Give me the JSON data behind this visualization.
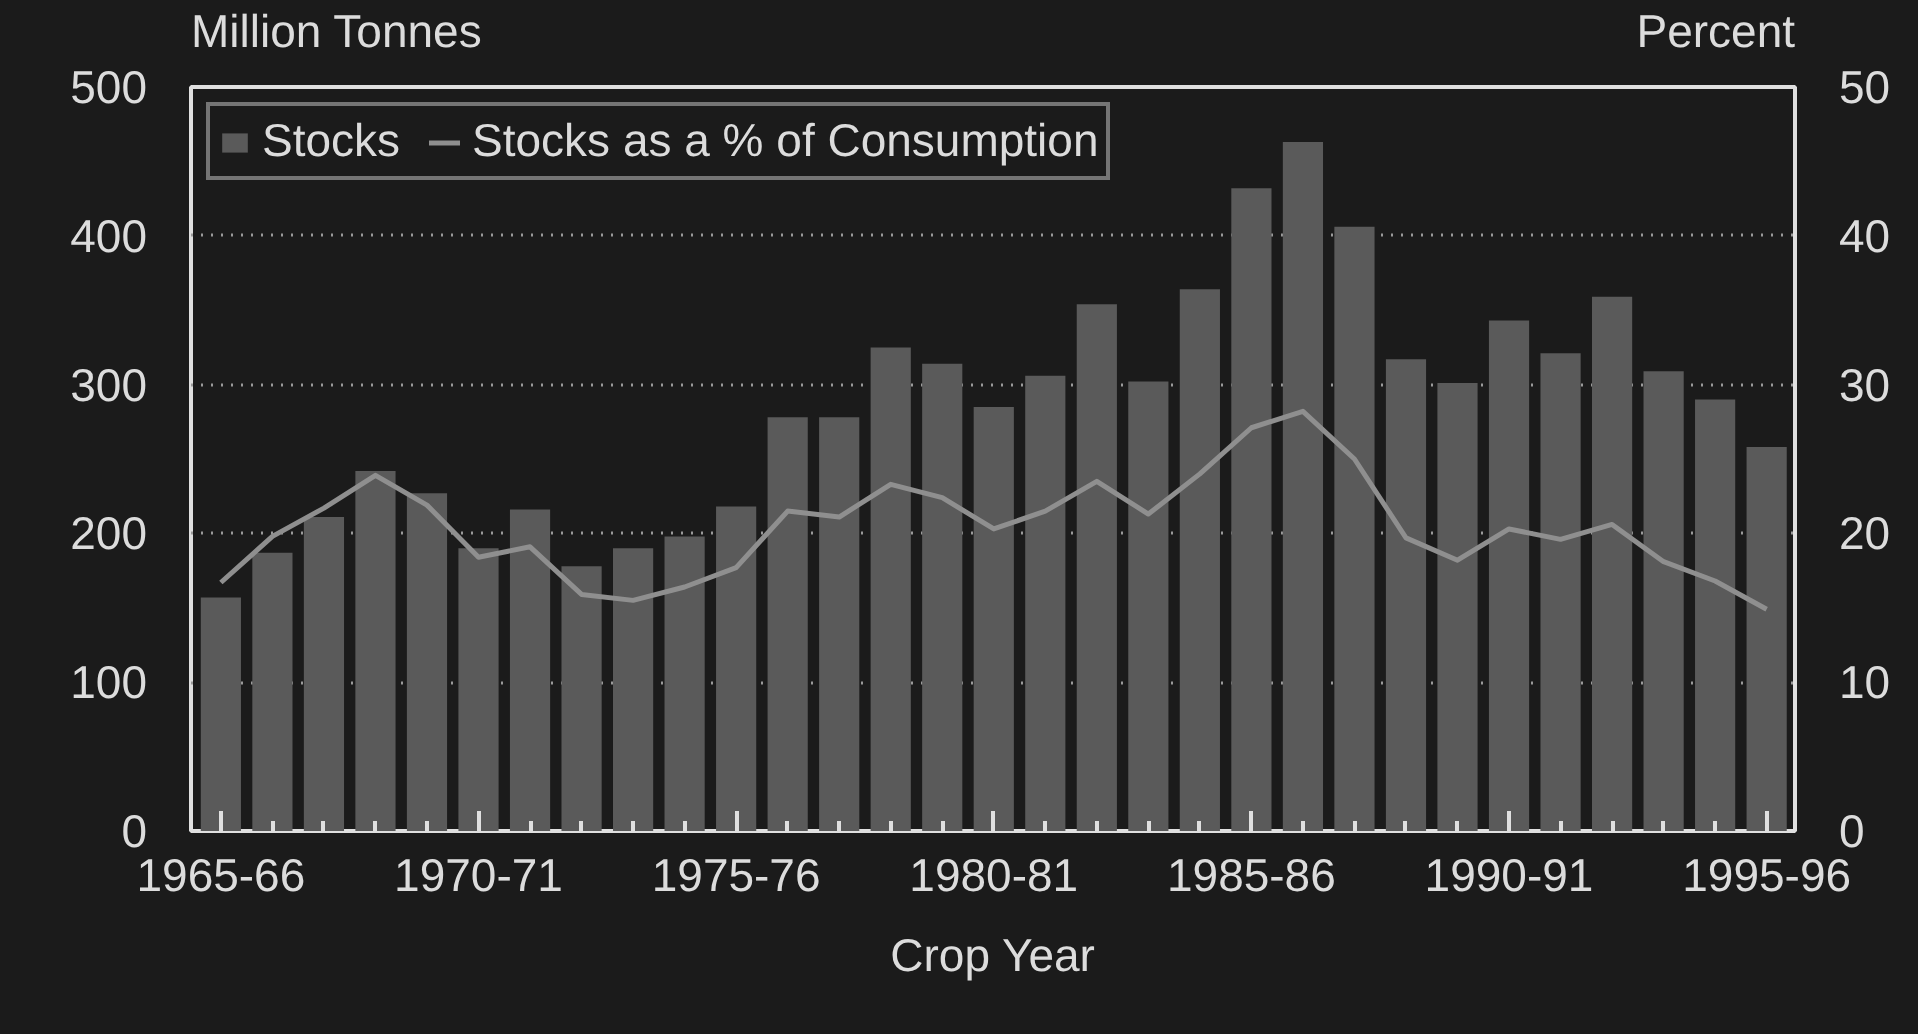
{
  "chart_data": {
    "type": "bar",
    "xlabel": "Crop Year",
    "ylabel": "Million Tonnes",
    "y2label": "Percent",
    "categories": [
      "1965-66",
      null,
      null,
      null,
      null,
      "1970-71",
      null,
      null,
      null,
      null,
      "1975-76",
      null,
      null,
      null,
      null,
      "1980-81",
      null,
      null,
      null,
      null,
      "1985-86",
      null,
      null,
      null,
      null,
      "1990-91",
      null,
      null,
      null,
      null,
      "1995-96"
    ],
    "ylim": [
      0,
      500
    ],
    "yticks": [
      0,
      100,
      200,
      300,
      400,
      500
    ],
    "y2lim": [
      0,
      50
    ],
    "y2ticks": [
      0,
      10,
      20,
      30,
      40,
      50
    ],
    "series": [
      {
        "name": "Stocks",
        "color": "#5a5a5a",
        "values": [
          157,
          187,
          211,
          242,
          227,
          190,
          216,
          178,
          190,
          198,
          218,
          278,
          278,
          325,
          314,
          285,
          306,
          354,
          302,
          364,
          432,
          463,
          406,
          317,
          301,
          343,
          321,
          359,
          309,
          290,
          258
        ]
      },
      {
        "name": "Stocks as a % of Consumption",
        "type": "line",
        "axis": "y2",
        "color": "#8f8f8f",
        "values": [
          16.7,
          19.8,
          21.7,
          23.9,
          21.9,
          18.4,
          19.1,
          15.9,
          15.5,
          16.4,
          17.7,
          21.5,
          21.1,
          23.3,
          22.4,
          20.3,
          21.5,
          23.5,
          21.3,
          24.0,
          27.1,
          28.2,
          25.0,
          19.7,
          18.2,
          20.3,
          19.6,
          20.6,
          18.1,
          16.8,
          14.9
        ]
      }
    ],
    "grid": "y",
    "legend": "top left"
  }
}
